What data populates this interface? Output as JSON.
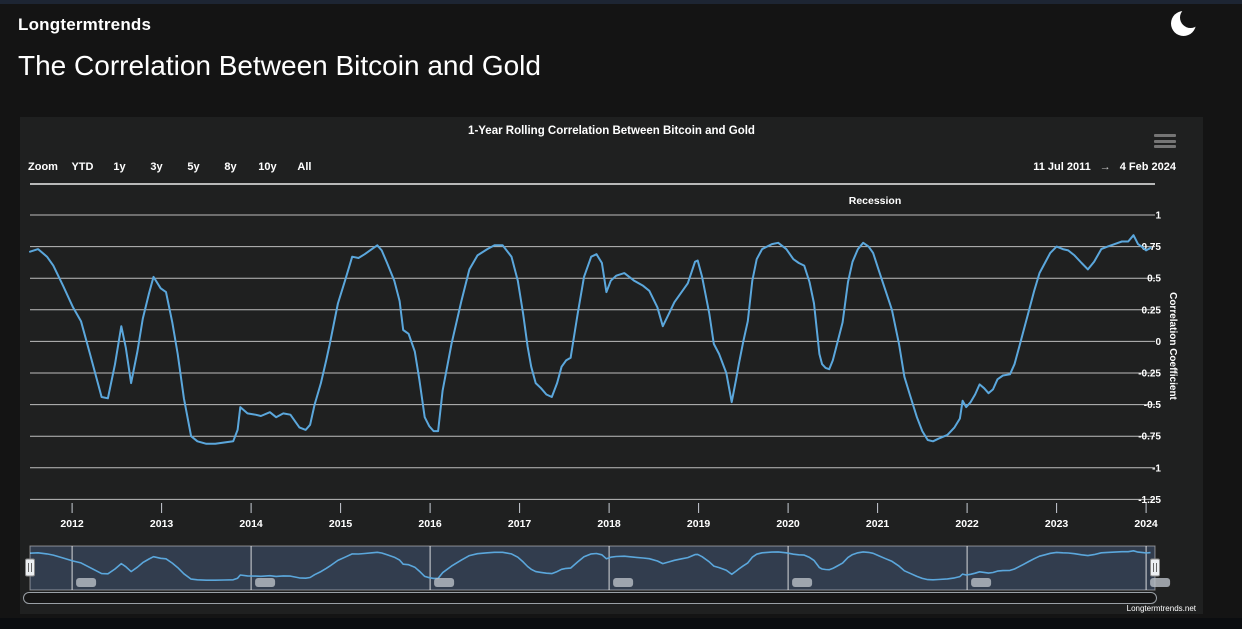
{
  "page": {
    "brand": "Longtermtrends",
    "title": "The Correlation Between Bitcoin and Gold",
    "credit": "Longtermtrends.net",
    "theme_toggle_icon": "moon-icon",
    "menu_icon": "hamburger-menu-icon"
  },
  "colors": {
    "page_bg": "#141414",
    "card_bg": "#1f2020",
    "top_strip": "#1d2533",
    "line": "#5ba7dc",
    "grid": "#d9d9d9",
    "navigator_mask": "#6082ba",
    "text": "#ffffff"
  },
  "range_selector": {
    "zoom_label": "Zoom",
    "buttons": [
      "YTD",
      "1y",
      "3y",
      "5y",
      "8y",
      "10y",
      "All"
    ],
    "from": "11 Jul 2011",
    "arrow": "→",
    "to": "4 Feb 2024"
  },
  "legend": {
    "items": [
      {
        "label": "Recession"
      }
    ]
  },
  "chart_data": {
    "type": "line",
    "title": "1-Year Rolling Correlation Between Bitcoin and Gold",
    "xlabel": "",
    "ylabel": "Correlation Coefficient",
    "ylim": [
      -1.25,
      1.25
    ],
    "yticks": [
      1,
      0.75,
      0.5,
      0.25,
      0,
      -0.25,
      -0.5,
      -0.75,
      -1,
      -1.25
    ],
    "xlim": [
      2011.53,
      2024.1
    ],
    "xticks": [
      2012,
      2013,
      2014,
      2015,
      2016,
      2017,
      2018,
      2019,
      2020,
      2021,
      2022,
      2023,
      2024
    ],
    "grid": "horizontal-only",
    "legend_position": "top-inside-right",
    "navigator": {
      "gridline_years": [
        2012,
        2014,
        2016,
        2018,
        2020,
        2022,
        2024
      ],
      "label_pills": true
    },
    "series": [
      {
        "name": "1-Year Rolling Correlation Between Bitcoin and Gold",
        "color": "#5ba7dc",
        "data": [
          [
            2011.53,
            0.71
          ],
          [
            2011.62,
            0.73
          ],
          [
            2011.72,
            0.67
          ],
          [
            2011.79,
            0.6
          ],
          [
            2011.9,
            0.44
          ],
          [
            2012.01,
            0.27
          ],
          [
            2012.1,
            0.16
          ],
          [
            2012.2,
            -0.1
          ],
          [
            2012.33,
            -0.44
          ],
          [
            2012.4,
            -0.45
          ],
          [
            2012.48,
            -0.18
          ],
          [
            2012.55,
            0.12
          ],
          [
            2012.6,
            -0.05
          ],
          [
            2012.66,
            -0.33
          ],
          [
            2012.73,
            -0.08
          ],
          [
            2012.79,
            0.18
          ],
          [
            2012.86,
            0.38
          ],
          [
            2012.91,
            0.51
          ],
          [
            2012.99,
            0.42
          ],
          [
            2013.05,
            0.39
          ],
          [
            2013.12,
            0.15
          ],
          [
            2013.18,
            -0.1
          ],
          [
            2013.25,
            -0.45
          ],
          [
            2013.33,
            -0.75
          ],
          [
            2013.4,
            -0.79
          ],
          [
            2013.5,
            -0.81
          ],
          [
            2013.6,
            -0.81
          ],
          [
            2013.7,
            -0.8
          ],
          [
            2013.8,
            -0.79
          ],
          [
            2013.85,
            -0.7
          ],
          [
            2013.88,
            -0.52
          ],
          [
            2013.96,
            -0.57
          ],
          [
            2014.05,
            -0.58
          ],
          [
            2014.11,
            -0.59
          ],
          [
            2014.21,
            -0.56
          ],
          [
            2014.28,
            -0.6
          ],
          [
            2014.36,
            -0.57
          ],
          [
            2014.44,
            -0.58
          ],
          [
            2014.54,
            -0.68
          ],
          [
            2014.61,
            -0.7
          ],
          [
            2014.66,
            -0.66
          ],
          [
            2014.71,
            -0.5
          ],
          [
            2014.78,
            -0.33
          ],
          [
            2014.84,
            -0.15
          ],
          [
            2014.88,
            -0.02
          ],
          [
            2014.97,
            0.3
          ],
          [
            2015.05,
            0.48
          ],
          [
            2015.13,
            0.67
          ],
          [
            2015.2,
            0.66
          ],
          [
            2015.27,
            0.69
          ],
          [
            2015.35,
            0.73
          ],
          [
            2015.41,
            0.76
          ],
          [
            2015.46,
            0.72
          ],
          [
            2015.52,
            0.62
          ],
          [
            2015.6,
            0.48
          ],
          [
            2015.66,
            0.32
          ],
          [
            2015.7,
            0.09
          ],
          [
            2015.76,
            0.06
          ],
          [
            2015.83,
            -0.08
          ],
          [
            2015.88,
            -0.3
          ],
          [
            2015.94,
            -0.6
          ],
          [
            2015.99,
            -0.67
          ],
          [
            2016.04,
            -0.71
          ],
          [
            2016.09,
            -0.71
          ],
          [
            2016.14,
            -0.39
          ],
          [
            2016.24,
            -0.02
          ],
          [
            2016.35,
            0.32
          ],
          [
            2016.44,
            0.57
          ],
          [
            2016.53,
            0.68
          ],
          [
            2016.64,
            0.73
          ],
          [
            2016.72,
            0.76
          ],
          [
            2016.81,
            0.76
          ],
          [
            2016.91,
            0.67
          ],
          [
            2016.98,
            0.48
          ],
          [
            2017.04,
            0.22
          ],
          [
            2017.09,
            -0.04
          ],
          [
            2017.13,
            -0.2
          ],
          [
            2017.18,
            -0.33
          ],
          [
            2017.24,
            -0.37
          ],
          [
            2017.3,
            -0.42
          ],
          [
            2017.36,
            -0.44
          ],
          [
            2017.42,
            -0.33
          ],
          [
            2017.47,
            -0.2
          ],
          [
            2017.52,
            -0.15
          ],
          [
            2017.57,
            -0.13
          ],
          [
            2017.65,
            0.22
          ],
          [
            2017.72,
            0.51
          ],
          [
            2017.8,
            0.67
          ],
          [
            2017.86,
            0.69
          ],
          [
            2017.92,
            0.62
          ],
          [
            2017.97,
            0.39
          ],
          [
            2018.02,
            0.48
          ],
          [
            2018.08,
            0.52
          ],
          [
            2018.17,
            0.54
          ],
          [
            2018.28,
            0.48
          ],
          [
            2018.38,
            0.44
          ],
          [
            2018.45,
            0.4
          ],
          [
            2018.54,
            0.27
          ],
          [
            2018.6,
            0.12
          ],
          [
            2018.67,
            0.22
          ],
          [
            2018.73,
            0.31
          ],
          [
            2018.81,
            0.39
          ],
          [
            2018.88,
            0.46
          ],
          [
            2018.96,
            0.63
          ],
          [
            2018.99,
            0.64
          ],
          [
            2019.04,
            0.51
          ],
          [
            2019.12,
            0.22
          ],
          [
            2019.17,
            -0.02
          ],
          [
            2019.23,
            -0.1
          ],
          [
            2019.31,
            -0.25
          ],
          [
            2019.37,
            -0.48
          ],
          [
            2019.42,
            -0.3
          ],
          [
            2019.45,
            -0.18
          ],
          [
            2019.5,
            0.0
          ],
          [
            2019.55,
            0.16
          ],
          [
            2019.6,
            0.48
          ],
          [
            2019.65,
            0.65
          ],
          [
            2019.71,
            0.73
          ],
          [
            2019.82,
            0.77
          ],
          [
            2019.89,
            0.78
          ],
          [
            2019.98,
            0.73
          ],
          [
            2020.06,
            0.65
          ],
          [
            2020.12,
            0.62
          ],
          [
            2020.18,
            0.6
          ],
          [
            2020.24,
            0.47
          ],
          [
            2020.29,
            0.3
          ],
          [
            2020.35,
            -0.1
          ],
          [
            2020.38,
            -0.18
          ],
          [
            2020.42,
            -0.21
          ],
          [
            2020.46,
            -0.22
          ],
          [
            2020.5,
            -0.15
          ],
          [
            2020.54,
            -0.04
          ],
          [
            2020.61,
            0.15
          ],
          [
            2020.67,
            0.47
          ],
          [
            2020.72,
            0.63
          ],
          [
            2020.78,
            0.73
          ],
          [
            2020.84,
            0.78
          ],
          [
            2020.9,
            0.75
          ],
          [
            2020.95,
            0.7
          ],
          [
            2021.02,
            0.55
          ],
          [
            2021.09,
            0.4
          ],
          [
            2021.16,
            0.25
          ],
          [
            2021.24,
            -0.02
          ],
          [
            2021.3,
            -0.28
          ],
          [
            2021.36,
            -0.42
          ],
          [
            2021.44,
            -0.6
          ],
          [
            2021.5,
            -0.71
          ],
          [
            2021.56,
            -0.78
          ],
          [
            2021.62,
            -0.79
          ],
          [
            2021.68,
            -0.77
          ],
          [
            2021.78,
            -0.74
          ],
          [
            2021.86,
            -0.68
          ],
          [
            2021.92,
            -0.61
          ],
          [
            2021.95,
            -0.47
          ],
          [
            2021.99,
            -0.52
          ],
          [
            2022.04,
            -0.48
          ],
          [
            2022.09,
            -0.42
          ],
          [
            2022.14,
            -0.34
          ],
          [
            2022.19,
            -0.37
          ],
          [
            2022.24,
            -0.41
          ],
          [
            2022.29,
            -0.38
          ],
          [
            2022.34,
            -0.3
          ],
          [
            2022.4,
            -0.27
          ],
          [
            2022.48,
            -0.26
          ],
          [
            2022.53,
            -0.18
          ],
          [
            2022.58,
            -0.05
          ],
          [
            2022.63,
            0.08
          ],
          [
            2022.69,
            0.24
          ],
          [
            2022.75,
            0.4
          ],
          [
            2022.81,
            0.54
          ],
          [
            2022.87,
            0.62
          ],
          [
            2022.93,
            0.7
          ],
          [
            2023.0,
            0.75
          ],
          [
            2023.07,
            0.73
          ],
          [
            2023.13,
            0.72
          ],
          [
            2023.2,
            0.68
          ],
          [
            2023.28,
            0.62
          ],
          [
            2023.35,
            0.57
          ],
          [
            2023.42,
            0.63
          ],
          [
            2023.5,
            0.73
          ],
          [
            2023.57,
            0.75
          ],
          [
            2023.65,
            0.77
          ],
          [
            2023.73,
            0.79
          ],
          [
            2023.8,
            0.79
          ],
          [
            2023.86,
            0.84
          ],
          [
            2023.91,
            0.77
          ],
          [
            2023.95,
            0.75
          ],
          [
            2024.0,
            0.72
          ],
          [
            2024.05,
            0.74
          ]
        ]
      }
    ]
  }
}
